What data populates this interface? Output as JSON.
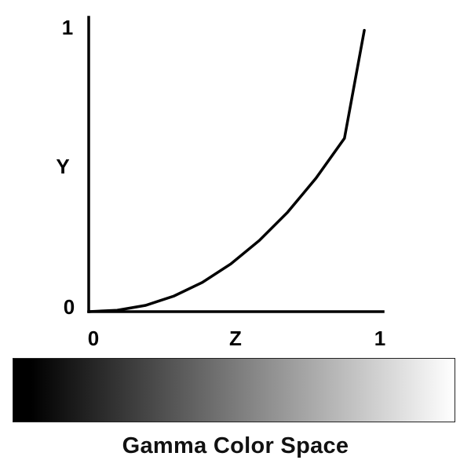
{
  "chart_data": {
    "type": "line",
    "title": "",
    "xlabel": "Z",
    "ylabel": "Y",
    "xlim": [
      0,
      1
    ],
    "ylim": [
      0,
      1
    ],
    "x_ticks": [
      "0",
      "1"
    ],
    "y_ticks": [
      "0",
      "1"
    ],
    "grid": false,
    "series": [
      {
        "x": [
          0,
          0.1,
          0.2,
          0.3,
          0.4,
          0.5,
          0.6,
          0.7,
          0.8,
          0.9,
          0.97
        ],
        "y": [
          0,
          0.005,
          0.022,
          0.055,
          0.103,
          0.168,
          0.25,
          0.35,
          0.47,
          0.61,
          0.99
        ]
      }
    ],
    "line_color": "#000000"
  },
  "gradient_bar": {
    "from_color": "#000000",
    "to_color": "#ffffff"
  },
  "caption": "Gamma Color Space"
}
